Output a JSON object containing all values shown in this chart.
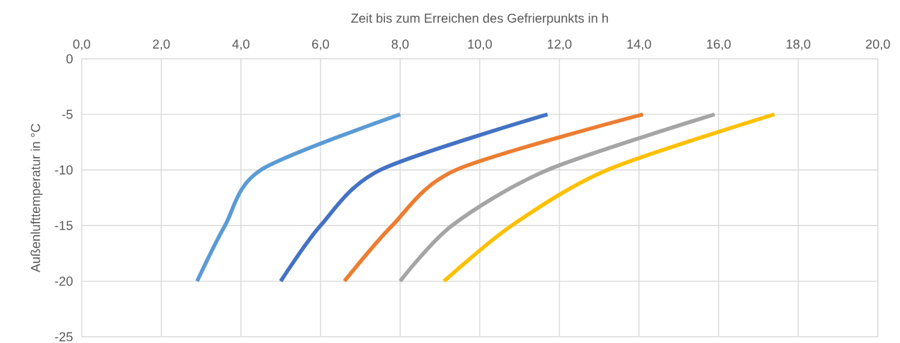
{
  "chart_data": {
    "type": "line",
    "xlabel": "Zeit bis zum Erreichen des Gefrierpunkts in h",
    "ylabel": "Außenlufttemperatur  in °C",
    "xlim": [
      0,
      20
    ],
    "ylim": [
      -25,
      0
    ],
    "xticks": [
      {
        "value": 0,
        "label": "0,0"
      },
      {
        "value": 2,
        "label": "2,0"
      },
      {
        "value": 4,
        "label": "4,0"
      },
      {
        "value": 6,
        "label": "6,0"
      },
      {
        "value": 8,
        "label": "8,0"
      },
      {
        "value": 10,
        "label": "10,0"
      },
      {
        "value": 12,
        "label": "12,0"
      },
      {
        "value": 14,
        "label": "14,0"
      },
      {
        "value": 16,
        "label": "16,0"
      },
      {
        "value": 18,
        "label": "18,0"
      },
      {
        "value": 20,
        "label": "20,0"
      }
    ],
    "yticks": [
      0,
      -5,
      -10,
      -15,
      -20,
      -25
    ],
    "grid": true,
    "marker": "none",
    "line_style": "solid",
    "series": [
      {
        "color": "#5b9bd5",
        "x": [
          8.0,
          4.5,
          3.6,
          2.9
        ],
        "values": [
          -5,
          -10,
          -15,
          -20
        ]
      },
      {
        "color": "#4472c4",
        "x": [
          11.7,
          7.5,
          6.0,
          5.0
        ],
        "values": [
          -5,
          -10,
          -15,
          -20
        ]
      },
      {
        "color": "#ed7d31",
        "x": [
          14.1,
          9.4,
          7.8,
          6.6
        ],
        "values": [
          -5,
          -10,
          -15,
          -20
        ]
      },
      {
        "color": "#a5a5a5",
        "x": [
          15.9,
          11.7,
          9.3,
          8.0
        ],
        "values": [
          -5,
          -10,
          -15,
          -20
        ]
      },
      {
        "color": "#ffc000",
        "x": [
          17.4,
          13.2,
          10.8,
          9.1
        ],
        "values": [
          -5,
          -10,
          -15,
          -20
        ]
      }
    ]
  }
}
